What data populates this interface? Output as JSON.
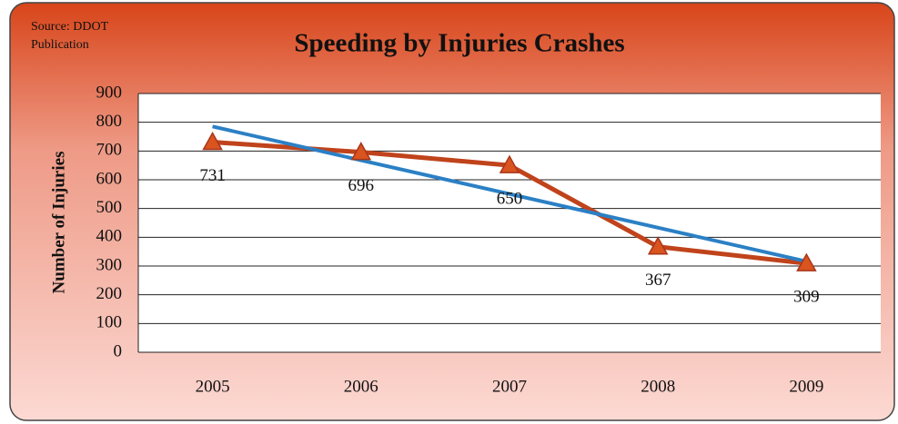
{
  "chart_data": {
    "type": "line",
    "title": "Speeding by Injuries Crashes",
    "source": "Source: DDOT Publication",
    "y_label": "Number of Injuries",
    "categories": [
      "2005",
      "2006",
      "2007",
      "2008",
      "2009"
    ],
    "series": [
      {
        "color": "#c0431b",
        "values": [
          731,
          696,
          650,
          367,
          309
        ]
      }
    ],
    "trendline": {
      "kind": "linear",
      "color": "#2b80c5"
    },
    "ylim": [
      0,
      900
    ],
    "yticks": [
      0,
      100,
      200,
      300,
      400,
      500,
      600,
      700,
      800,
      900
    ],
    "grid": true
  }
}
